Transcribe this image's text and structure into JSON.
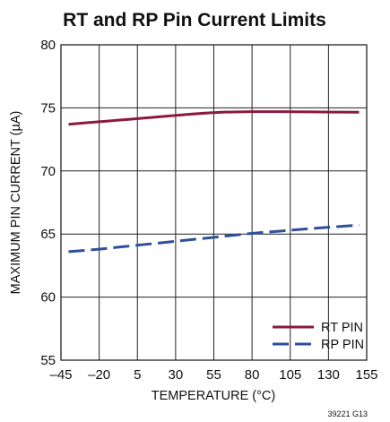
{
  "chart_data": {
    "type": "line",
    "title": "RT and RP Pin Current Limits",
    "xlabel": "TEMPERATURE (°C)",
    "ylabel": "MAXIMUM PIN CURRENT (µA)",
    "xlim": [
      -45,
      155
    ],
    "ylim": [
      55,
      80
    ],
    "x_ticks": [
      -45,
      -20,
      5,
      30,
      55,
      80,
      105,
      130,
      155
    ],
    "x_tick_labels": [
      "–45",
      "–20",
      "5",
      "30",
      "55",
      "80",
      "105",
      "130",
      "155"
    ],
    "y_ticks": [
      55,
      60,
      65,
      70,
      75,
      80
    ],
    "y_tick_labels": [
      "55",
      "60",
      "65",
      "70",
      "75",
      "80"
    ],
    "grid": true,
    "legend_position": "bottom-right",
    "series": [
      {
        "name": "RT PIN",
        "color": "#8b1a3c",
        "dash": "solid",
        "x": [
          -40,
          -20,
          0,
          20,
          40,
          60,
          80,
          100,
          120,
          150
        ],
        "y": [
          73.7,
          73.9,
          74.1,
          74.3,
          74.5,
          74.65,
          74.7,
          74.7,
          74.68,
          74.65
        ]
      },
      {
        "name": "RP PIN",
        "color": "#2e4f9b",
        "dash": "dashed",
        "x": [
          -40,
          -20,
          0,
          20,
          40,
          60,
          80,
          100,
          120,
          150
        ],
        "y": [
          63.6,
          63.8,
          64.05,
          64.3,
          64.55,
          64.8,
          65.05,
          65.25,
          65.45,
          65.7
        ]
      }
    ],
    "note": "39221 G13"
  }
}
